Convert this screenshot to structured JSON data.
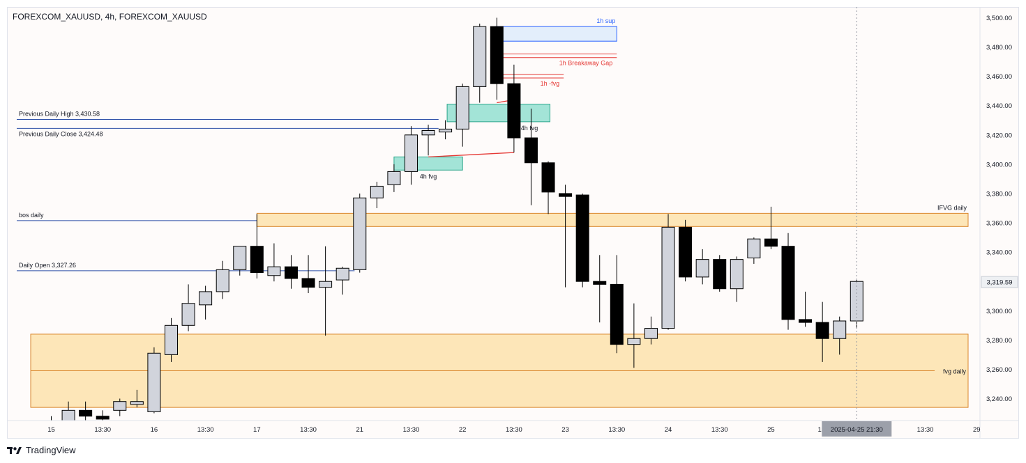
{
  "header": {
    "symbol_title": "FOREXCOM_XAUUSD, 4h, FOREXCOM_XAUUSD"
  },
  "footer": {
    "brand": "TradingView"
  },
  "colors": {
    "bull_fill": "#d1d4dc",
    "bear_fill": "#000000",
    "wick": "#000000",
    "zone_fill": "#fde6b8",
    "zone_border": "#d9862b",
    "fvg_fill": "#a3e4d7",
    "fvg_border": "#2aa58a",
    "sup_fill": "#e3eefb",
    "sup_border": "#2962ff",
    "level_line": "#2b4ea6",
    "red_line": "#e53935",
    "label_red": "#e53935"
  },
  "chart_data": {
    "type": "candlestick",
    "timeframe": "4h",
    "y_axis": {
      "range": [
        3232,
        3504
      ],
      "ticks": [
        "3,240.00",
        "3,260.00",
        "3,280.00",
        "3,300.00",
        "3,320.00",
        "3,340.00",
        "3,360.00",
        "3,380.00",
        "3,400.00",
        "3,420.00",
        "3,440.00",
        "3,460.00",
        "3,480.00",
        "3,500.00"
      ],
      "last_price": "3,319.59"
    },
    "x_axis": {
      "ticks": [
        {
          "i": 0,
          "label": "15"
        },
        {
          "i": 3,
          "label": "13:30"
        },
        {
          "i": 6,
          "label": "16"
        },
        {
          "i": 9,
          "label": "13:30"
        },
        {
          "i": 12,
          "label": "17"
        },
        {
          "i": 15,
          "label": "13:30"
        },
        {
          "i": 18,
          "label": "21"
        },
        {
          "i": 21,
          "label": "13:30"
        },
        {
          "i": 24,
          "label": "22"
        },
        {
          "i": 27,
          "label": "13:30"
        },
        {
          "i": 30,
          "label": "23"
        },
        {
          "i": 33,
          "label": "13:30"
        },
        {
          "i": 36,
          "label": "24"
        },
        {
          "i": 39,
          "label": "13:30"
        },
        {
          "i": 42,
          "label": "25"
        },
        {
          "i": 45,
          "label": "13:"
        },
        {
          "i": 51,
          "label": "13:30"
        },
        {
          "i": 54,
          "label": "29"
        }
      ],
      "crosshair": {
        "i": 47,
        "label": "2025-04-25   21:30"
      }
    },
    "candles": [
      {
        "o": 3225,
        "h": 3228,
        "l": 3210,
        "c": 3215
      },
      {
        "o": 3215,
        "h": 3238,
        "l": 3210,
        "c": 3232
      },
      {
        "o": 3232,
        "h": 3238,
        "l": 3222,
        "c": 3228
      },
      {
        "o": 3228,
        "h": 3232,
        "l": 3220,
        "c": 3226
      },
      {
        "o": 3232,
        "h": 3240,
        "l": 3228,
        "c": 3238
      },
      {
        "o": 3236,
        "h": 3246,
        "l": 3234,
        "c": 3238
      },
      {
        "o": 3231,
        "h": 3275,
        "l": 3230,
        "c": 3271
      },
      {
        "o": 3270,
        "h": 3295,
        "l": 3265,
        "c": 3290
      },
      {
        "o": 3290,
        "h": 3318,
        "l": 3286,
        "c": 3305
      },
      {
        "o": 3304,
        "h": 3317,
        "l": 3294,
        "c": 3313
      },
      {
        "o": 3313,
        "h": 3334,
        "l": 3308,
        "c": 3328
      },
      {
        "o": 3328,
        "h": 3344,
        "l": 3324,
        "c": 3344
      },
      {
        "o": 3344,
        "h": 3366,
        "l": 3322,
        "c": 3326
      },
      {
        "o": 3324,
        "h": 3346,
        "l": 3320,
        "c": 3330
      },
      {
        "o": 3330,
        "h": 3338,
        "l": 3315,
        "c": 3322
      },
      {
        "o": 3322,
        "h": 3338,
        "l": 3312,
        "c": 3316
      },
      {
        "o": 3316,
        "h": 3344,
        "l": 3283,
        "c": 3320
      },
      {
        "o": 3321,
        "h": 3330,
        "l": 3311,
        "c": 3329
      },
      {
        "o": 3328,
        "h": 3380,
        "l": 3326,
        "c": 3377
      },
      {
        "o": 3377,
        "h": 3388,
        "l": 3370,
        "c": 3385
      },
      {
        "o": 3386,
        "h": 3400,
        "l": 3381,
        "c": 3395
      },
      {
        "o": 3395,
        "h": 3426,
        "l": 3386,
        "c": 3420
      },
      {
        "o": 3420,
        "h": 3427,
        "l": 3406,
        "c": 3423
      },
      {
        "o": 3422,
        "h": 3430,
        "l": 3417,
        "c": 3424
      },
      {
        "o": 3424,
        "h": 3455,
        "l": 3412,
        "c": 3453
      },
      {
        "o": 3453,
        "h": 3496,
        "l": 3442,
        "c": 3494
      },
      {
        "o": 3494,
        "h": 3500,
        "l": 3444,
        "c": 3455
      },
      {
        "o": 3455,
        "h": 3468,
        "l": 3408,
        "c": 3418
      },
      {
        "o": 3418,
        "h": 3438,
        "l": 3372,
        "c": 3401
      },
      {
        "o": 3401,
        "h": 3402,
        "l": 3366,
        "c": 3381
      },
      {
        "o": 3380,
        "h": 3386,
        "l": 3316,
        "c": 3378
      },
      {
        "o": 3379,
        "h": 3380,
        "l": 3316,
        "c": 3320
      },
      {
        "o": 3320,
        "h": 3338,
        "l": 3292,
        "c": 3318
      },
      {
        "o": 3318,
        "h": 3338,
        "l": 3271,
        "c": 3277
      },
      {
        "o": 3277,
        "h": 3305,
        "l": 3261,
        "c": 3281
      },
      {
        "o": 3281,
        "h": 3296,
        "l": 3277,
        "c": 3288
      },
      {
        "o": 3288,
        "h": 3366,
        "l": 3287,
        "c": 3357
      },
      {
        "o": 3357,
        "h": 3362,
        "l": 3320,
        "c": 3323
      },
      {
        "o": 3323,
        "h": 3342,
        "l": 3318,
        "c": 3335
      },
      {
        "o": 3335,
        "h": 3338,
        "l": 3313,
        "c": 3315
      },
      {
        "o": 3315,
        "h": 3337,
        "l": 3306,
        "c": 3335
      },
      {
        "o": 3336,
        "h": 3350,
        "l": 3332,
        "c": 3349
      },
      {
        "o": 3349,
        "h": 3371,
        "l": 3342,
        "c": 3344
      },
      {
        "o": 3344,
        "h": 3353,
        "l": 3287,
        "c": 3294
      },
      {
        "o": 3294,
        "h": 3313,
        "l": 3289,
        "c": 3292
      },
      {
        "o": 3292,
        "h": 3306,
        "l": 3265,
        "c": 3281
      },
      {
        "o": 3281,
        "h": 3296,
        "l": 3270,
        "c": 3293
      },
      {
        "o": 3293,
        "h": 3321,
        "l": 3288,
        "c": 3320
      }
    ],
    "zones": [
      {
        "name": "fvg daily",
        "kind": "zone",
        "i_start": -1.2,
        "i_end": 53.5,
        "y_low": 3234,
        "y_high": 3284,
        "mid": 3259,
        "label": "fvg daily",
        "label_pos": "mid-right"
      },
      {
        "name": "IFVG daily",
        "kind": "zone",
        "i_start": 12.0,
        "i_end": 53.5,
        "y_low": 3357.5,
        "y_high": 3366.5,
        "label": "IFVG daily",
        "label_pos": "top-right"
      },
      {
        "name": "4h fvg lower",
        "kind": "fvg",
        "i_start": 20.0,
        "i_end": 24.0,
        "y_low": 3396,
        "y_high": 3405,
        "label": "4h fvg",
        "label_pos": "bottom"
      },
      {
        "name": "4h fvg upper",
        "kind": "fvg",
        "i_start": 23.1,
        "i_end": 29.1,
        "y_low": 3429,
        "y_high": 3441,
        "label": "4h fvg",
        "label_pos": "bottom-right"
      },
      {
        "name": "1h sup",
        "kind": "sup",
        "i_start": 25.9,
        "i_end": 33.0,
        "y_low": 3484,
        "y_high": 3494,
        "label": "1h sup",
        "label_pos": "top-right"
      }
    ],
    "level_lines": [
      {
        "label": "Previous Daily High 3,430.58",
        "y": 3430.58,
        "i_end": 22.6,
        "label_above": true
      },
      {
        "label": "Previous Daily Close 3,424.48",
        "y": 3424.48,
        "i_end": 22.6,
        "label_above": false
      },
      {
        "label": "bos daily",
        "y": 3361.5,
        "i_end": 12.0,
        "label_above": true
      },
      {
        "label": "Daily Open 3,327.26",
        "y": 3327.26,
        "i_end": 17.7,
        "label_above": true
      }
    ],
    "red_lines": [
      {
        "label": "1h Breakaway Gap",
        "i_start": 26.0,
        "i_end": 33.0,
        "ys": [
          3475.3,
          3472.8
        ]
      },
      {
        "label": "1h -fvg",
        "i_start": 26.0,
        "i_end": 29.9,
        "ys": [
          3461.3,
          3458.9
        ]
      }
    ],
    "red_segments": [
      {
        "i1": 22.0,
        "y1": 3405,
        "i2": 27.0,
        "y2": 3408
      },
      {
        "i1": 26.0,
        "y1": 3442,
        "i2": 27.0,
        "y2": 3444
      }
    ]
  }
}
